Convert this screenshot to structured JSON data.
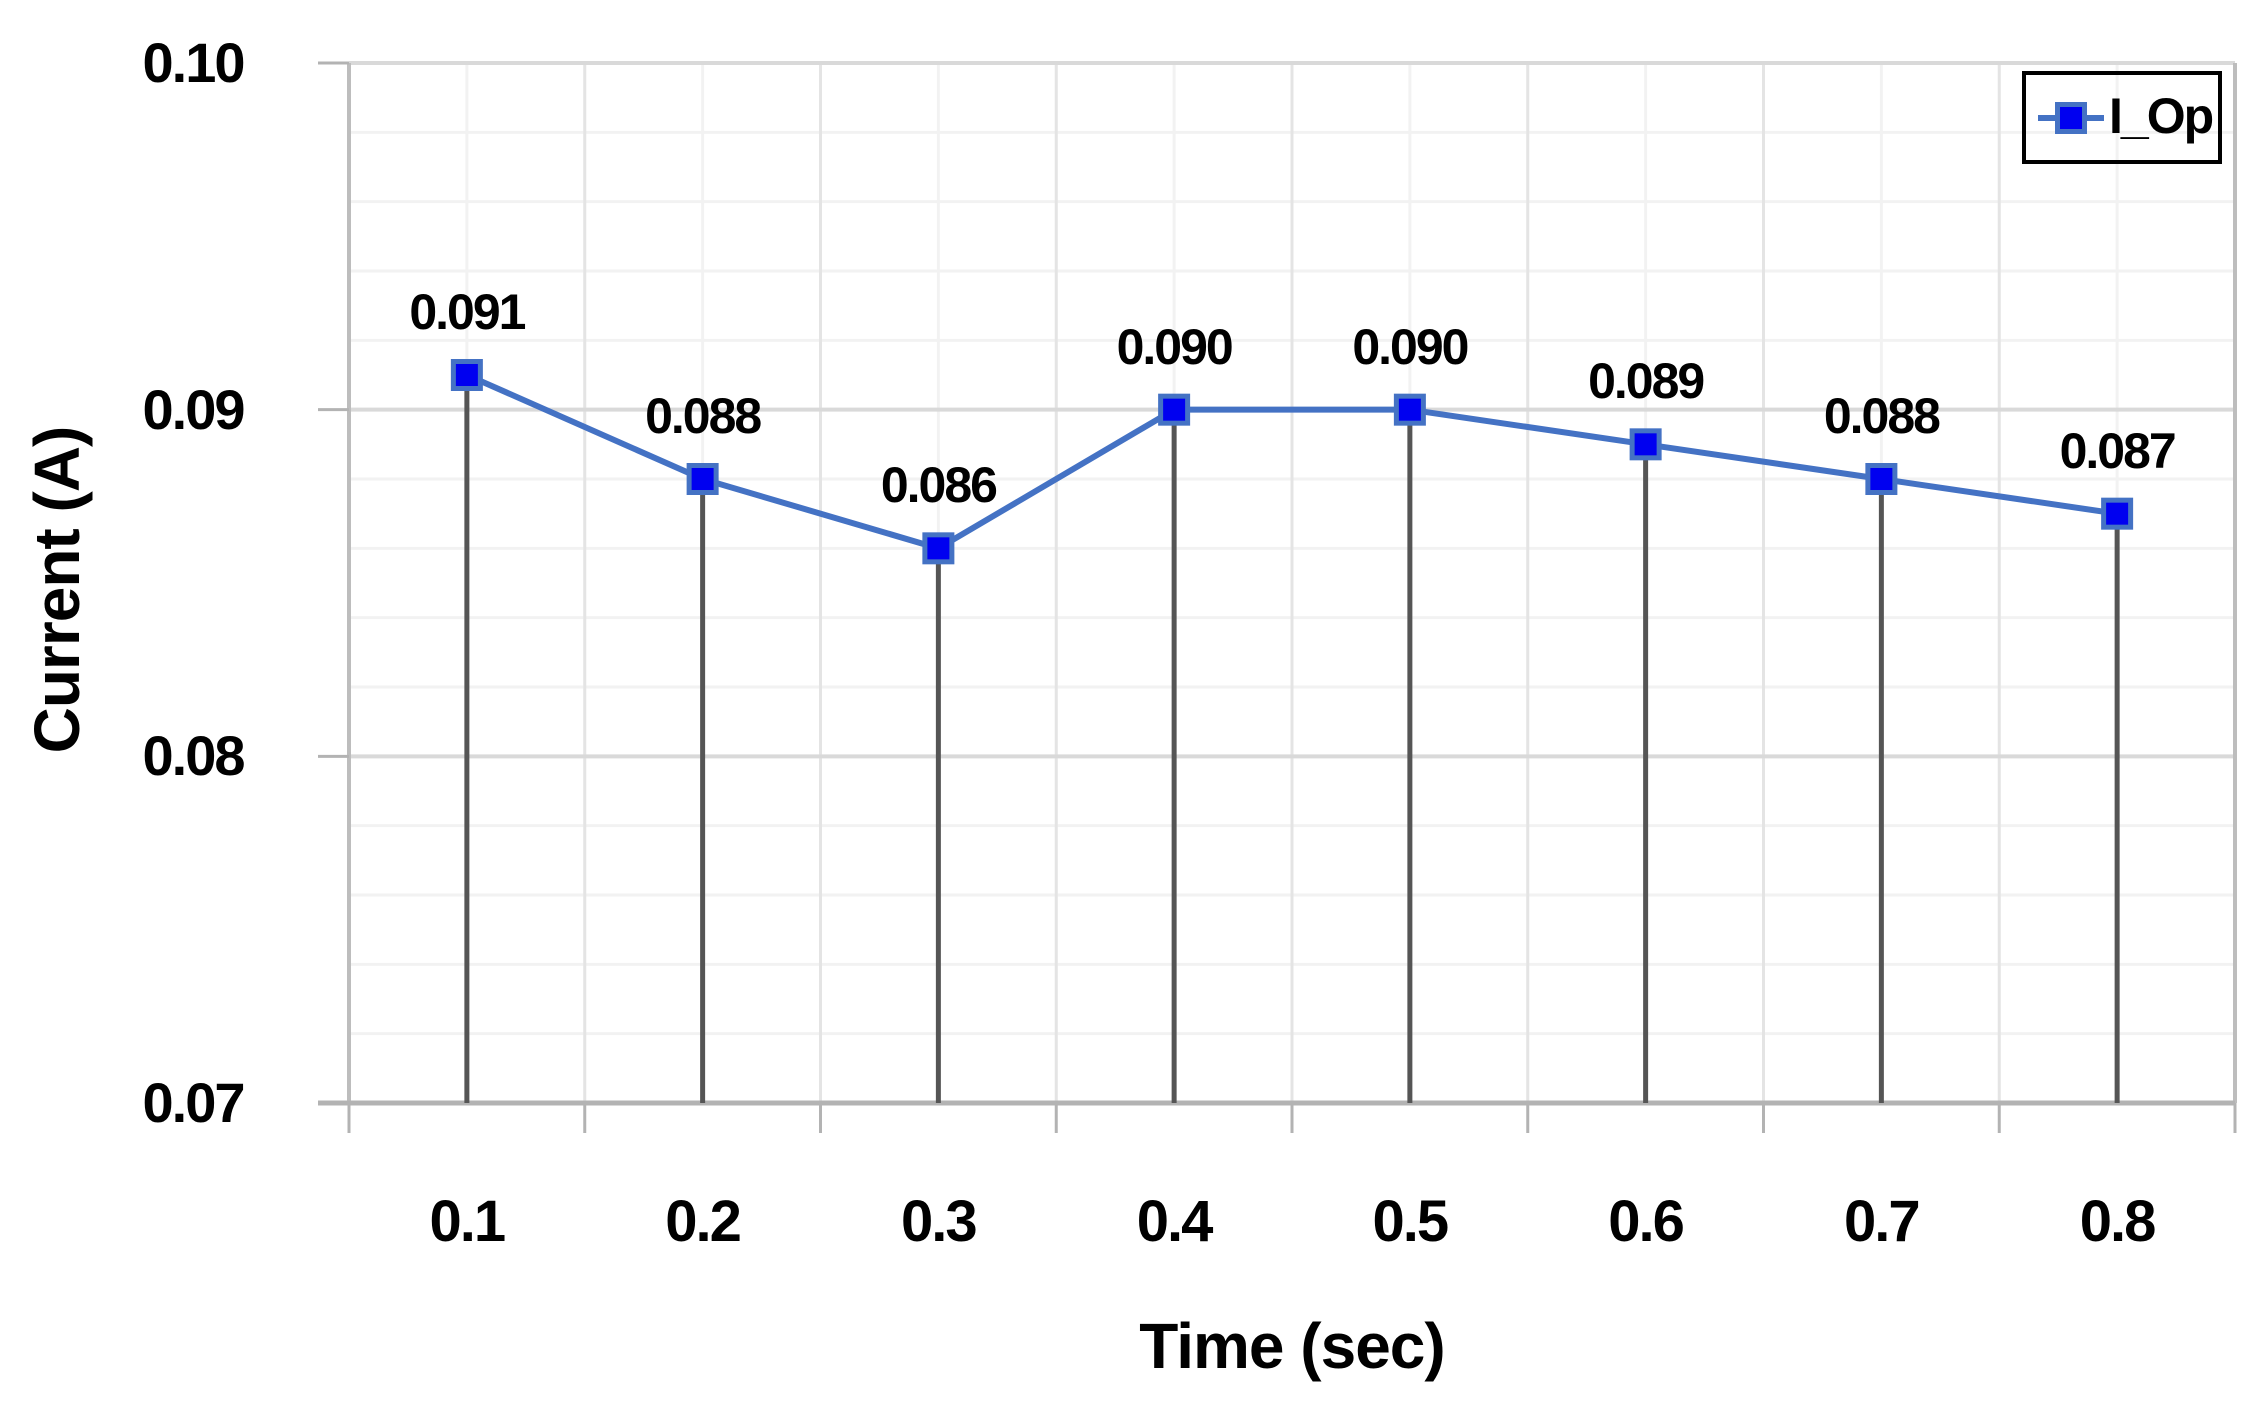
{
  "chart_data": {
    "type": "line",
    "title": "",
    "xlabel": "Time (sec)",
    "ylabel": "Current (A)",
    "categories": [
      "0.1",
      "0.2",
      "0.3",
      "0.4",
      "0.5",
      "0.6",
      "0.7",
      "0.8"
    ],
    "series": [
      {
        "name": "I_Op",
        "values": [
          0.091,
          0.088,
          0.086,
          0.09,
          0.09,
          0.089,
          0.088,
          0.087
        ]
      }
    ],
    "data_labels": [
      "0.091",
      "0.088",
      "0.086",
      "0.090",
      "0.090",
      "0.089",
      "0.088",
      "0.087"
    ],
    "ylim": [
      0.07,
      0.1
    ],
    "y_major_step": 0.01,
    "y_minor_step": 0.002,
    "y_tick_labels": [
      "0.10",
      "0.09",
      "0.08",
      "0.07"
    ],
    "grid": "major+minor, horizontal and vertical",
    "legend": {
      "label": "I_Op",
      "position": "top-right"
    },
    "marker": "square",
    "drop_lines": true,
    "colors": {
      "series_line": "#4472c4",
      "marker_fill": "#0000f0",
      "marker_border": "#4472c4",
      "drop_line": "#555555",
      "grid_major": "#d9d9d9",
      "grid_minor": "#f2f2f2",
      "grid_boundary": "#e4e4e4",
      "axis_line": "#b3b3b3",
      "plot_border": "#bdbdbd",
      "tick": "#b3b3b3",
      "text": "#000000",
      "legend_border": "#000000"
    }
  }
}
